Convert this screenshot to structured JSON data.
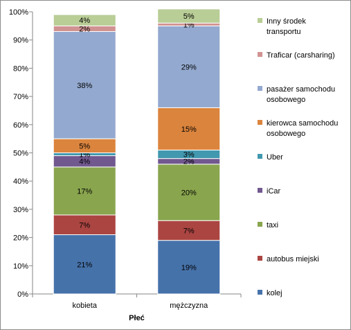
{
  "chart_data": {
    "type": "bar",
    "stacked": true,
    "percent": true,
    "categories": [
      "kobieta",
      "mężczyzna"
    ],
    "xlabel": "Płeć",
    "ylabel": "",
    "ylim": [
      0,
      100
    ],
    "yticks": [
      "0%",
      "10%",
      "20%",
      "30%",
      "40%",
      "50%",
      "60%",
      "70%",
      "80%",
      "90%",
      "100%"
    ],
    "grid": false,
    "legend_position": "right",
    "series": [
      {
        "name": "kolej",
        "color": "#4672AA",
        "values": [
          21,
          19
        ],
        "labels": [
          "21%",
          "19%"
        ]
      },
      {
        "name": "autobus miejski",
        "color": "#AB4542",
        "values": [
          7,
          7
        ],
        "labels": [
          "7%",
          "7%"
        ]
      },
      {
        "name": "taxi",
        "color": "#89A54E",
        "values": [
          17,
          20
        ],
        "labels": [
          "17%",
          "20%"
        ]
      },
      {
        "name": "iCar",
        "color": "#71588F",
        "values": [
          4,
          2
        ],
        "labels": [
          "4%",
          "2%"
        ]
      },
      {
        "name": "Uber",
        "color": "#4198AF",
        "values": [
          1,
          3
        ],
        "labels": [
          "1%",
          "3%"
        ]
      },
      {
        "name": "kierowca samochodu osobowego",
        "color": "#DB843D",
        "values": [
          5,
          15
        ],
        "labels": [
          "5%",
          "15%"
        ]
      },
      {
        "name": "pasażer samochodu osobowego",
        "color": "#93A9CF",
        "values": [
          38,
          29
        ],
        "labels": [
          "38%",
          "29%"
        ]
      },
      {
        "name": "Traficar (carsharing)",
        "color": "#D19392",
        "values": [
          2,
          1
        ],
        "labels": [
          "2%",
          "1%"
        ]
      },
      {
        "name": "Inny środek transportu",
        "color": "#B9CD96",
        "values": [
          4,
          5
        ],
        "labels": [
          "4%",
          "5%"
        ]
      }
    ],
    "legend_lines": [
      [
        "Inny środek",
        "transportu"
      ],
      [
        "Traficar (carsharing)"
      ],
      [
        "pasażer samochodu",
        "osobowego"
      ],
      [
        "kierowca samochodu",
        "osobowego"
      ],
      [
        "Uber"
      ],
      [
        "iCar"
      ],
      [
        "taxi"
      ],
      [
        "autobus miejski"
      ],
      [
        "kolej"
      ]
    ]
  }
}
